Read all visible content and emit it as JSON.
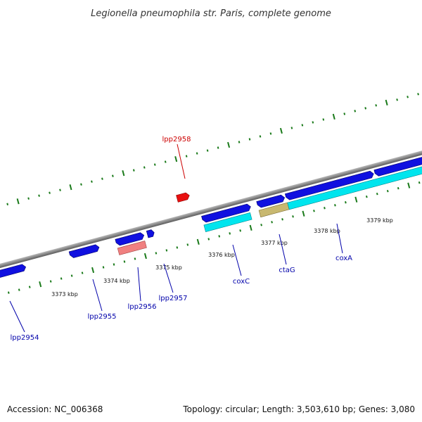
{
  "title": "Legionella pneumophila str. Paris, complete genome",
  "footer": {
    "accession": "Accession: NC_006368",
    "summary": "Topology: circular; Length: 3,503,610 bp; Genes: 3,080"
  },
  "colors": {
    "backbone": "#8a8a8a",
    "tick": "#1a7a1a",
    "cds": "#1010e0",
    "highlight_cds": "#e81010",
    "rrna_like": "#f08080",
    "cyan_feature": "#00e5ee",
    "olive_feature": "#c8b870",
    "label_blue": "#0000aa",
    "label_red": "#cc0000"
  },
  "ticks": [
    {
      "label": "3373 kbp"
    },
    {
      "label": "3374 kbp"
    },
    {
      "label": "3375 kbp"
    },
    {
      "label": "3376 kbp"
    },
    {
      "label": "3377 kbp"
    },
    {
      "label": "3378 kbp"
    },
    {
      "label": "3379 kbp"
    }
  ],
  "genes": [
    {
      "name": "lpp2954",
      "color": "#0000aa"
    },
    {
      "name": "lpp2955",
      "color": "#0000aa"
    },
    {
      "name": "lpp2956",
      "color": "#0000aa"
    },
    {
      "name": "lpp2957",
      "color": "#0000aa"
    },
    {
      "name": "lpp2958",
      "color": "#cc0000"
    },
    {
      "name": "coxC",
      "color": "#0000aa"
    },
    {
      "name": "ctaG",
      "color": "#0000aa"
    },
    {
      "name": "coxA",
      "color": "#0000aa"
    }
  ]
}
